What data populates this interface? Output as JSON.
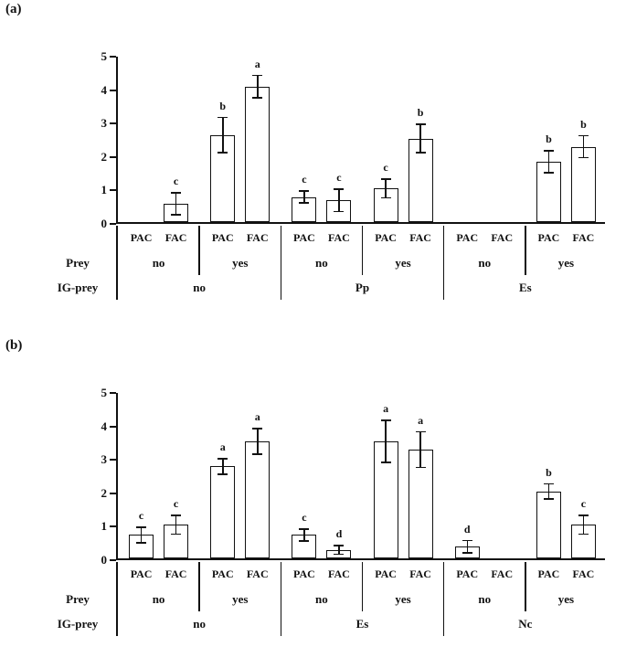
{
  "figure": {
    "background": "#ffffff",
    "colors": {
      "axis": "#111111",
      "bar_fill": "#ffffff",
      "bar_stroke": "#111111",
      "text": "#111111"
    }
  },
  "chart_data": [
    {
      "panel_label": "(a)",
      "type": "bar",
      "title": "",
      "xlabel": "",
      "ylabel": "",
      "ylim": [
        0,
        5
      ],
      "yticks": [
        0,
        1,
        2,
        3,
        4,
        5
      ],
      "grid": false,
      "legend": "none",
      "row_labels": {
        "prey": "Prey",
        "ig_prey": "IG-prey"
      },
      "bar_categories": [
        "PAC",
        "FAC"
      ],
      "groups": [
        {
          "ig_prey": "no",
          "subgroups": [
            {
              "prey": "no",
              "bars": [
                {
                  "x": "PAC",
                  "value": 0,
                  "error": 0,
                  "letter": ""
                },
                {
                  "x": "FAC",
                  "value": 0.55,
                  "error": 0.35,
                  "letter": "c"
                }
              ]
            },
            {
              "prey": "yes",
              "bars": [
                {
                  "x": "PAC",
                  "value": 2.6,
                  "error": 0.55,
                  "letter": "b"
                },
                {
                  "x": "FAC",
                  "value": 4.05,
                  "error": 0.35,
                  "letter": "a"
                }
              ]
            }
          ]
        },
        {
          "ig_prey": "Pp",
          "subgroups": [
            {
              "prey": "no",
              "bars": [
                {
                  "x": "PAC",
                  "value": 0.75,
                  "error": 0.2,
                  "letter": "c"
                },
                {
                  "x": "FAC",
                  "value": 0.65,
                  "error": 0.35,
                  "letter": "c"
                }
              ]
            },
            {
              "prey": "yes",
              "bars": [
                {
                  "x": "PAC",
                  "value": 1.0,
                  "error": 0.3,
                  "letter": "c"
                },
                {
                  "x": "FAC",
                  "value": 2.5,
                  "error": 0.45,
                  "letter": "b"
                }
              ]
            }
          ]
        },
        {
          "ig_prey": "Es",
          "subgroups": [
            {
              "prey": "no",
              "bars": [
                {
                  "x": "PAC",
                  "value": 0,
                  "error": 0,
                  "letter": ""
                },
                {
                  "x": "FAC",
                  "value": 0,
                  "error": 0,
                  "letter": ""
                }
              ]
            },
            {
              "prey": "yes",
              "bars": [
                {
                  "x": "PAC",
                  "value": 1.8,
                  "error": 0.35,
                  "letter": "b"
                },
                {
                  "x": "FAC",
                  "value": 2.25,
                  "error": 0.35,
                  "letter": "b"
                }
              ]
            }
          ]
        }
      ]
    },
    {
      "panel_label": "(b)",
      "type": "bar",
      "title": "",
      "xlabel": "",
      "ylabel": "",
      "ylim": [
        0,
        5
      ],
      "yticks": [
        0,
        1,
        2,
        3,
        4,
        5
      ],
      "grid": false,
      "legend": "none",
      "row_labels": {
        "prey": "Prey",
        "ig_prey": "IG-prey"
      },
      "bar_categories": [
        "PAC",
        "FAC"
      ],
      "groups": [
        {
          "ig_prey": "no",
          "subgroups": [
            {
              "prey": "no",
              "bars": [
                {
                  "x": "PAC",
                  "value": 0.7,
                  "error": 0.25,
                  "letter": "c"
                },
                {
                  "x": "FAC",
                  "value": 1.0,
                  "error": 0.3,
                  "letter": "c"
                }
              ]
            },
            {
              "prey": "yes",
              "bars": [
                {
                  "x": "PAC",
                  "value": 2.75,
                  "error": 0.25,
                  "letter": "a"
                },
                {
                  "x": "FAC",
                  "value": 3.5,
                  "error": 0.4,
                  "letter": "a"
                }
              ]
            }
          ]
        },
        {
          "ig_prey": "Es",
          "subgroups": [
            {
              "prey": "no",
              "bars": [
                {
                  "x": "PAC",
                  "value": 0.7,
                  "error": 0.2,
                  "letter": "c"
                },
                {
                  "x": "FAC",
                  "value": 0.25,
                  "error": 0.15,
                  "letter": "d"
                }
              ]
            },
            {
              "prey": "yes",
              "bars": [
                {
                  "x": "PAC",
                  "value": 3.5,
                  "error": 0.65,
                  "letter": "a"
                },
                {
                  "x": "FAC",
                  "value": 3.25,
                  "error": 0.55,
                  "letter": "a"
                }
              ]
            }
          ]
        },
        {
          "ig_prey": "Nc",
          "subgroups": [
            {
              "prey": "no",
              "bars": [
                {
                  "x": "PAC",
                  "value": 0.35,
                  "error": 0.2,
                  "letter": "d"
                },
                {
                  "x": "FAC",
                  "value": 0,
                  "error": 0,
                  "letter": ""
                }
              ]
            },
            {
              "prey": "yes",
              "bars": [
                {
                  "x": "PAC",
                  "value": 2.0,
                  "error": 0.25,
                  "letter": "b"
                },
                {
                  "x": "FAC",
                  "value": 1.0,
                  "error": 0.3,
                  "letter": "c"
                }
              ]
            }
          ]
        }
      ]
    }
  ]
}
